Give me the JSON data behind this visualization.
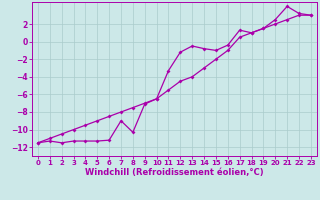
{
  "xlabel": "Windchill (Refroidissement éolien,°C)",
  "background_color": "#cce8e8",
  "grid_color": "#aacccc",
  "line_color": "#aa00aa",
  "spine_color": "#aa00aa",
  "xlim": [
    -0.5,
    23.5
  ],
  "ylim": [
    -13,
    4.5
  ],
  "xticks": [
    0,
    1,
    2,
    3,
    4,
    5,
    6,
    7,
    8,
    9,
    10,
    11,
    12,
    13,
    14,
    15,
    16,
    17,
    18,
    19,
    20,
    21,
    22,
    23
  ],
  "yticks": [
    -12,
    -10,
    -8,
    -6,
    -4,
    -2,
    0,
    2
  ],
  "line_ref_x": [
    0,
    1,
    2,
    3,
    4,
    5,
    6,
    7,
    8,
    9,
    10,
    11,
    12,
    13,
    14,
    15,
    16,
    17,
    18,
    19,
    20,
    21,
    22,
    23
  ],
  "line_ref_y": [
    -11.5,
    -11.0,
    -10.5,
    -10.0,
    -9.5,
    -9.0,
    -8.5,
    -8.0,
    -7.5,
    -7.0,
    -6.5,
    -5.5,
    -4.5,
    -4.0,
    -3.0,
    -2.0,
    -1.0,
    0.5,
    1.0,
    1.5,
    2.0,
    2.5,
    3.0,
    3.0
  ],
  "line_data_x": [
    0,
    1,
    2,
    3,
    4,
    5,
    6,
    7,
    8,
    9,
    10,
    11,
    12,
    13,
    14,
    15,
    16,
    17,
    18,
    19,
    20,
    21,
    22,
    23
  ],
  "line_data_y": [
    -11.5,
    -11.3,
    -11.5,
    -11.3,
    -11.3,
    -11.3,
    -11.2,
    -9.0,
    -10.3,
    -7.1,
    -6.5,
    -3.3,
    -1.2,
    -0.5,
    -0.8,
    -1.0,
    -0.4,
    1.3,
    1.0,
    1.5,
    2.5,
    4.0,
    3.2,
    3.0
  ],
  "tick_fontsize": 5,
  "xlabel_fontsize": 6
}
